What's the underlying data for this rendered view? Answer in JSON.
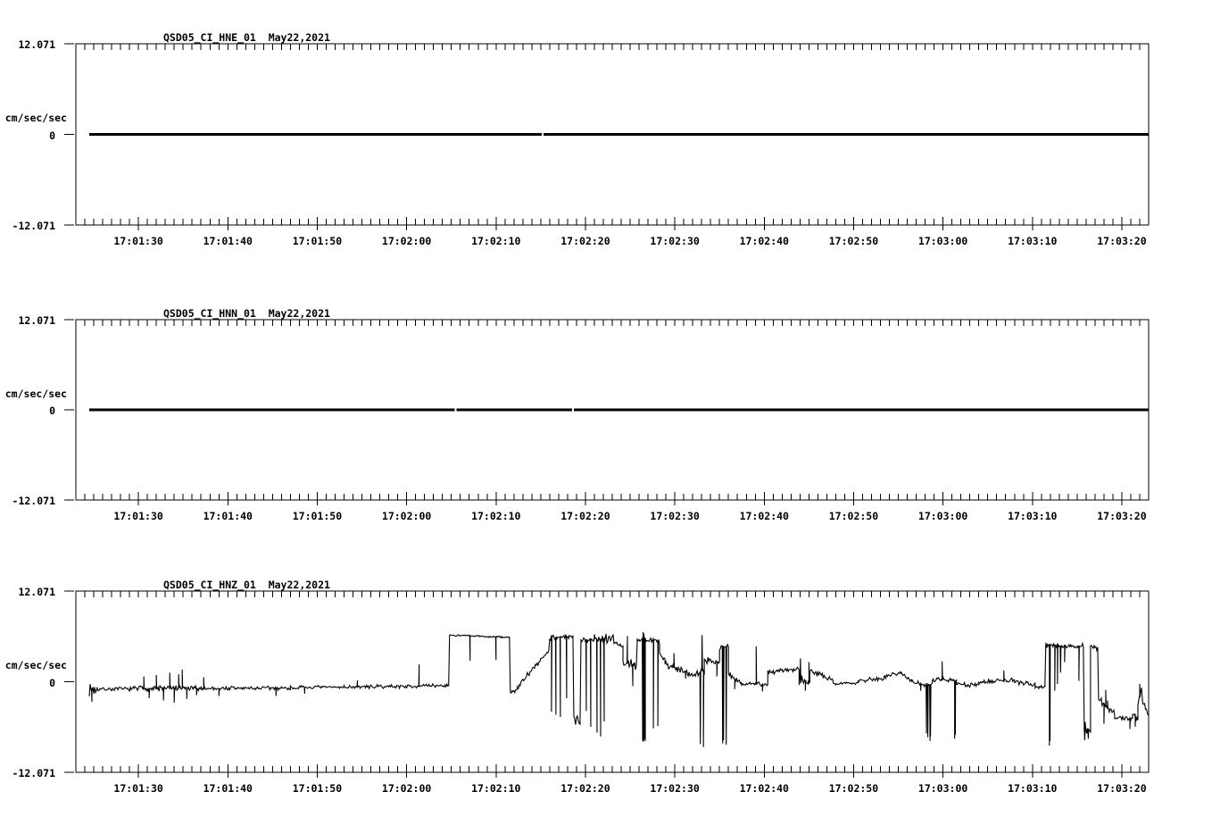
{
  "window": {
    "background": "#ffffff",
    "foreground": "#000000"
  },
  "chart_data": [
    {
      "type": "line",
      "panel": "HNE",
      "title": "QSD05_CI_HNE_01  May22,2021",
      "station_channel": "QSD05_CI_HNE_01",
      "date": "May22,2021",
      "ylabel": "cm/sec/sec",
      "ylim": [
        -12.071,
        12.071
      ],
      "ytick_labels": [
        "12.071",
        "0",
        "-12.071"
      ],
      "xlim_s": [
        0,
        120
      ],
      "x_first_major_offset_s": 7,
      "x_major_step_s": 10,
      "x_minor_step_s": 1,
      "x_major_tick_labels": [
        "17:01:30",
        "17:01:40",
        "17:01:50",
        "17:02:00",
        "17:02:10",
        "17:02:20",
        "17:02:30",
        "17:02:40",
        "17:02:50",
        "17:03:00",
        "17:03:10",
        "17:03:20"
      ],
      "grid": false,
      "series": {
        "kind": "flat",
        "value": 0,
        "t_start": 1.5,
        "t_end": 120,
        "gaps_s": [
          52.2
        ],
        "stroke_px": 3
      }
    },
    {
      "type": "line",
      "panel": "HNN",
      "title": "QSD05_CI_HNN_01  May22,2021",
      "station_channel": "QSD05_CI_HNN_01",
      "date": "May22,2021",
      "ylabel": "cm/sec/sec",
      "ylim": [
        -12.071,
        12.071
      ],
      "ytick_labels": [
        "12.071",
        "0",
        "-12.071"
      ],
      "xlim_s": [
        0,
        120
      ],
      "x_first_major_offset_s": 7,
      "x_major_step_s": 10,
      "x_minor_step_s": 1,
      "x_major_tick_labels": [
        "17:01:30",
        "17:01:40",
        "17:01:50",
        "17:02:00",
        "17:02:10",
        "17:02:20",
        "17:02:30",
        "17:02:40",
        "17:02:50",
        "17:03:00",
        "17:03:10",
        "17:03:20"
      ],
      "grid": false,
      "series": {
        "kind": "flat",
        "value": 0,
        "t_start": 1.5,
        "t_end": 120,
        "gaps_s": [
          42.5,
          55.6
        ],
        "stroke_px": 3
      }
    },
    {
      "type": "line",
      "panel": "HNZ",
      "title": "QSD05_CI_HNZ_01  May22,2021",
      "station_channel": "QSD05_CI_HNZ_01",
      "date": "May22,2021",
      "ylabel": "cm/sec/sec",
      "ylim": [
        -12.071,
        12.071
      ],
      "ytick_labels": [
        "12.071",
        "0",
        "-12.071"
      ],
      "xlim_s": [
        0,
        120
      ],
      "x_first_major_offset_s": 7,
      "x_major_step_s": 10,
      "x_minor_step_s": 1,
      "x_major_tick_labels": [
        "17:01:30",
        "17:01:40",
        "17:01:50",
        "17:02:00",
        "17:02:10",
        "17:02:20",
        "17:02:30",
        "17:02:40",
        "17:02:50",
        "17:03:00",
        "17:03:10",
        "17:03:20"
      ],
      "grid": false,
      "series": {
        "kind": "noisy",
        "t_start": 1.5,
        "t_end": 120,
        "stroke_px": 1.1,
        "seed": 7,
        "segments": [
          [
            1.5,
            2.4,
            -1.0,
            -1.0,
            1.0
          ],
          [
            2.4,
            6.5,
            -1.0,
            -0.95,
            0.3
          ],
          [
            6.5,
            12.6,
            -0.9,
            -0.9,
            0.55
          ],
          [
            12.6,
            24.0,
            -0.9,
            -0.85,
            0.38
          ],
          [
            24.0,
            37.5,
            -0.8,
            -0.6,
            0.28
          ],
          [
            37.5,
            41.7,
            -0.6,
            -0.5,
            0.28
          ],
          [
            41.8,
            48.5,
            6.2,
            5.9,
            0.15
          ],
          [
            48.6,
            49.4,
            -1.4,
            -1.0,
            0.45
          ],
          [
            49.4,
            52.9,
            -0.8,
            4.2,
            0.5
          ],
          [
            53.0,
            55.6,
            5.9,
            6.0,
            0.45
          ],
          [
            55.7,
            56.4,
            -5.2,
            -5.8,
            1.3
          ],
          [
            56.5,
            58.0,
            5.6,
            5.7,
            0.55
          ],
          [
            58.0,
            60.1,
            5.6,
            5.9,
            0.9
          ],
          [
            60.2,
            61.2,
            5.3,
            4.6,
            0.4
          ],
          [
            61.2,
            62.75,
            2.6,
            2.2,
            0.75
          ],
          [
            62.8,
            65.3,
            5.6,
            5.4,
            0.5
          ],
          [
            65.3,
            65.9,
            4.0,
            2.8,
            2.2
          ],
          [
            65.9,
            68.4,
            2.4,
            1.2,
            0.65
          ],
          [
            68.4,
            69.7,
            1.0,
            1.2,
            0.55
          ],
          [
            69.7,
            70.3,
            1.3,
            1.5,
            0.7
          ],
          [
            70.3,
            72.0,
            2.9,
            2.6,
            0.6
          ],
          [
            72.0,
            73.0,
            4.7,
            4.6,
            0.85
          ],
          [
            73.0,
            74.4,
            1.0,
            -0.3,
            0.7
          ],
          [
            74.4,
            76.0,
            -0.3,
            -0.2,
            0.35
          ],
          [
            76.0,
            77.4,
            -0.3,
            -0.5,
            0.45
          ],
          [
            77.4,
            80.9,
            1.3,
            1.8,
            0.45
          ],
          [
            80.9,
            82.1,
            0.2,
            0.2,
            0.8
          ],
          [
            82.1,
            84.7,
            1.5,
            0.1,
            0.45
          ],
          [
            84.7,
            87.5,
            -0.25,
            -0.15,
            0.22
          ],
          [
            87.5,
            90.4,
            0.2,
            0.4,
            0.4
          ],
          [
            90.4,
            92.3,
            0.7,
            1.3,
            0.4
          ],
          [
            92.3,
            93.5,
            1.2,
            0.2,
            0.4
          ],
          [
            93.5,
            94.9,
            -0.1,
            -0.4,
            0.4
          ],
          [
            94.9,
            95.8,
            -0.4,
            -0.4,
            0.45
          ],
          [
            95.8,
            98.1,
            0.2,
            0.3,
            0.45
          ],
          [
            98.1,
            98.5,
            0.1,
            0.1,
            0.35
          ],
          [
            98.5,
            101.0,
            -0.4,
            -0.5,
            0.4
          ],
          [
            101.0,
            105.0,
            0.0,
            0.2,
            0.4
          ],
          [
            105.0,
            107.3,
            -0.1,
            -0.4,
            0.35
          ],
          [
            107.3,
            108.4,
            -0.6,
            -0.8,
            0.3
          ],
          [
            108.5,
            112.75,
            4.9,
            4.7,
            0.45
          ],
          [
            112.8,
            113.5,
            -6.2,
            -6.6,
            1.1
          ],
          [
            113.5,
            114.35,
            4.8,
            4.5,
            0.4
          ],
          [
            114.4,
            116.2,
            -2.2,
            -4.4,
            0.7
          ],
          [
            116.2,
            118.2,
            -4.8,
            -4.9,
            0.3
          ],
          [
            118.2,
            118.8,
            -4.2,
            -5.0,
            0.8
          ],
          [
            118.8,
            119.25,
            -3.0,
            -0.8,
            0.6
          ],
          [
            119.25,
            120.0,
            -2.0,
            -4.6,
            0.7
          ]
        ],
        "spikes": [
          [
            1.8,
            -2.7
          ],
          [
            7.6,
            0.7
          ],
          [
            8.2,
            -2.2
          ],
          [
            9.0,
            0.9
          ],
          [
            9.8,
            -2.5
          ],
          [
            10.5,
            1.2
          ],
          [
            11.0,
            -2.8
          ],
          [
            11.5,
            1.0
          ],
          [
            11.9,
            1.6
          ],
          [
            12.4,
            -2.3
          ],
          [
            13.5,
            -1.8
          ],
          [
            14.3,
            0.6
          ],
          [
            16.0,
            -1.9
          ],
          [
            22.4,
            -1.9
          ],
          [
            25.6,
            -1.6
          ],
          [
            31.5,
            0.2
          ],
          [
            38.4,
            2.3
          ],
          [
            44.1,
            2.8
          ],
          [
            47.0,
            2.9
          ],
          [
            53.2,
            -4.0
          ],
          [
            53.7,
            -4.4
          ],
          [
            54.2,
            -4.7
          ],
          [
            54.9,
            -2.2
          ],
          [
            57.1,
            -3.9
          ],
          [
            57.6,
            -6.0
          ],
          [
            58.3,
            -6.8
          ],
          [
            58.7,
            -7.3
          ],
          [
            59.1,
            -5.3
          ],
          [
            61.7,
            6.1
          ],
          [
            62.3,
            -0.6
          ],
          [
            63.4,
            -7.9
          ],
          [
            63.45,
            6.6
          ],
          [
            63.5,
            -8.0
          ],
          [
            63.55,
            6.4
          ],
          [
            63.6,
            -7.7
          ],
          [
            63.65,
            5.9
          ],
          [
            63.7,
            -7.9
          ],
          [
            64.6,
            -6.2
          ],
          [
            65.1,
            -5.9
          ],
          [
            66.9,
            3.8
          ],
          [
            68.2,
            0.4
          ],
          [
            69.85,
            -8.3
          ],
          [
            70.05,
            6.2
          ],
          [
            70.2,
            -8.7
          ],
          [
            71.7,
            0.7
          ],
          [
            72.35,
            -8.2
          ],
          [
            72.45,
            -7.8
          ],
          [
            72.75,
            -8.4
          ],
          [
            73.7,
            -1.0
          ],
          [
            76.1,
            4.7
          ],
          [
            76.8,
            -1.3
          ],
          [
            81.05,
            3.1
          ],
          [
            81.6,
            -1.2
          ],
          [
            82.0,
            2.6
          ],
          [
            94.5,
            -1.2
          ],
          [
            95.15,
            -6.9
          ],
          [
            95.3,
            -7.4
          ],
          [
            95.55,
            -7.9
          ],
          [
            95.6,
            -7.3
          ],
          [
            96.9,
            2.7
          ],
          [
            98.3,
            -7.6
          ],
          [
            98.38,
            -7.1
          ],
          [
            103.8,
            1.5
          ],
          [
            108.9,
            -8.5
          ],
          [
            108.97,
            -7.9
          ],
          [
            109.5,
            -1.2
          ],
          [
            109.8,
            -0.3
          ],
          [
            110.15,
            1.2
          ],
          [
            110.6,
            2.6
          ],
          [
            112.2,
            0.1
          ],
          [
            112.85,
            -7.8
          ],
          [
            113.05,
            -6.9
          ],
          [
            113.25,
            -7.6
          ],
          [
            115.0,
            -5.6
          ],
          [
            115.2,
            -1.1
          ],
          [
            115.4,
            -2.5
          ],
          [
            117.9,
            -6.3
          ],
          [
            118.5,
            -6.0
          ],
          [
            119.0,
            -0.3
          ]
        ]
      }
    }
  ]
}
